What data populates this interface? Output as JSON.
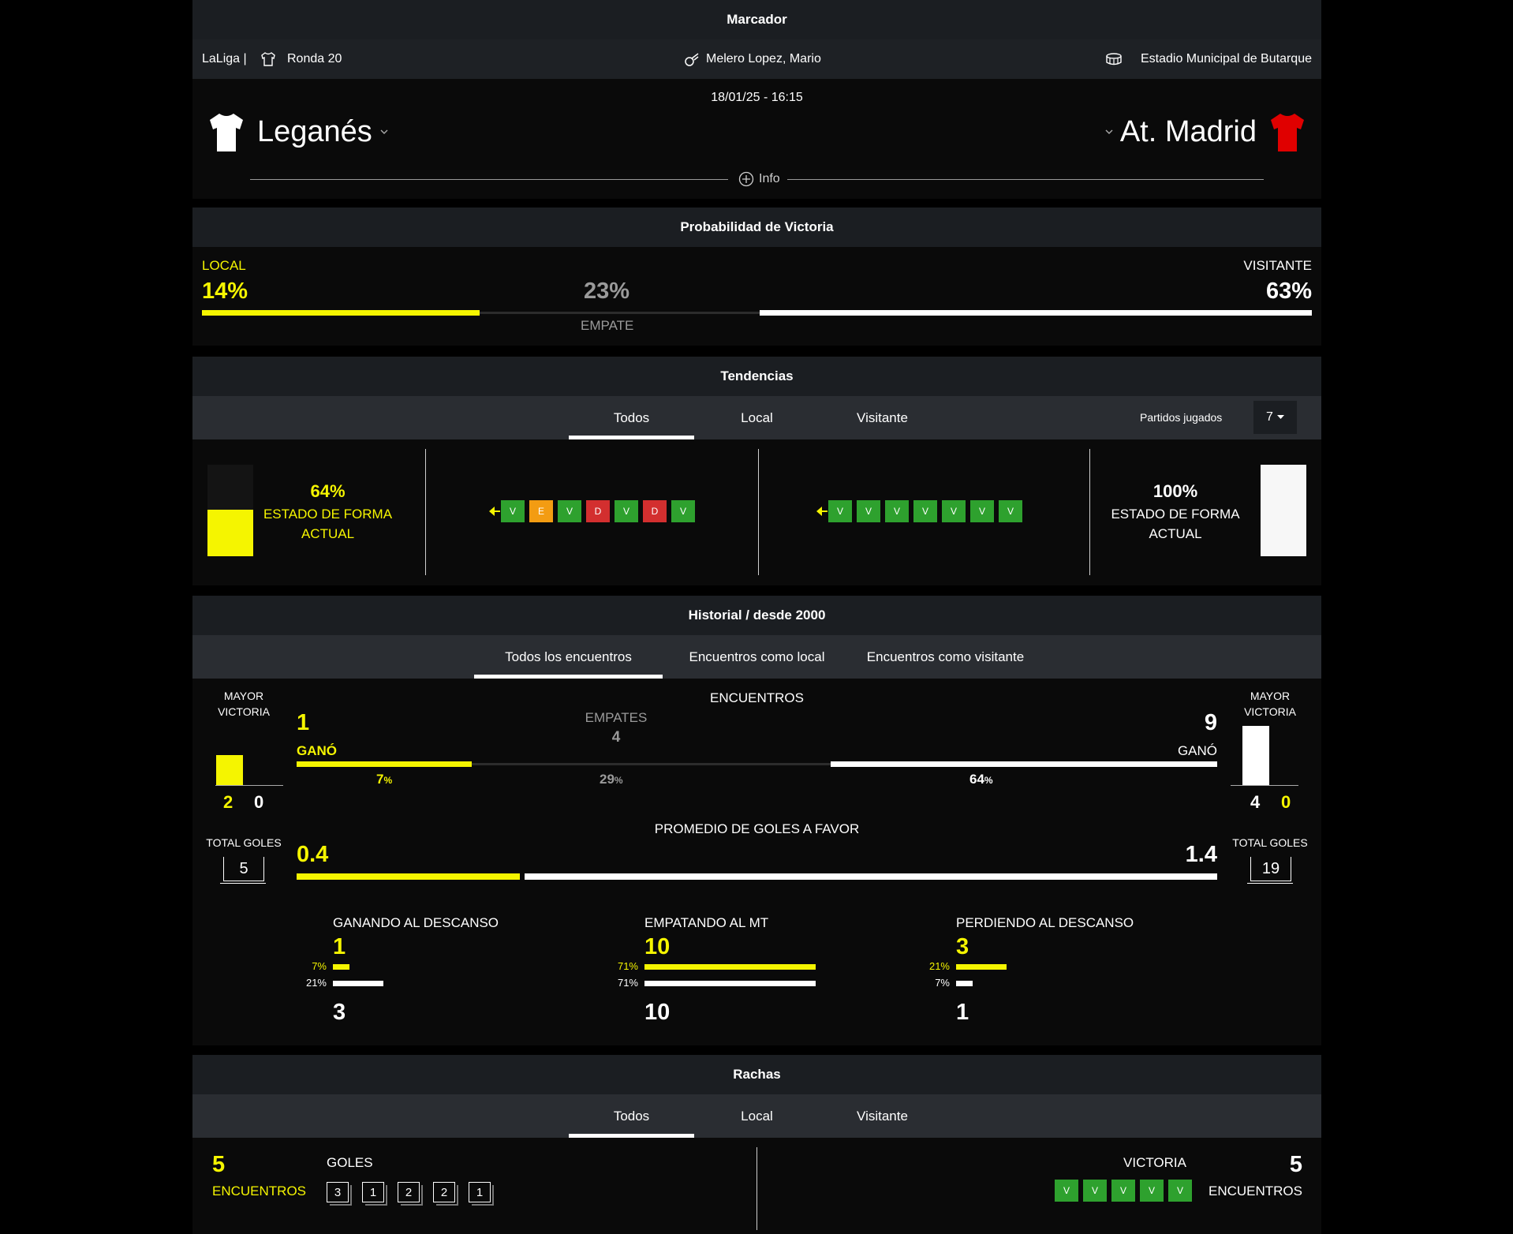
{
  "marcador": {
    "title": "Marcador",
    "league": "LaLiga |",
    "round": "Ronda 20",
    "referee": "Melero Lopez, Mario",
    "stadium": "Estadio Municipal de Butarque",
    "datetime": "18/01/25 - 16:15",
    "home_team": "Leganés",
    "away_team": "At. Madrid",
    "home_kit_color": "#ffffff",
    "away_kit_color": "#e00000",
    "info_label": "Info",
    "icons": {
      "round": "jersey-icon",
      "referee": "whistle-icon",
      "stadium": "stadium-icon",
      "info": "plus-circle-icon"
    }
  },
  "probabilidad": {
    "title": "Probabilidad de Victoria",
    "local_label": "LOCAL",
    "local_value": "14%",
    "draw_value": "23%",
    "draw_label": "EMPATE",
    "away_label": "VISITANTE",
    "away_value": "63%",
    "shares": {
      "local": 14,
      "draw": 23,
      "away": 63
    }
  },
  "tendencias": {
    "title": "Tendencias",
    "tabs": [
      "Todos",
      "Local",
      "Visitante"
    ],
    "active_tab": 0,
    "played_label": "Partidos jugados",
    "played_value": "7",
    "home_form_value": "64%",
    "home_form_label_1": "ESTADO DE FORMA",
    "home_form_label_2": "ACTUAL",
    "home_form_level": 64,
    "away_form_value": "100%",
    "away_form_label_1": "ESTADO DE FORMA",
    "away_form_label_2": "ACTUAL",
    "away_form_level": 100,
    "home_results": [
      "V",
      "E",
      "V",
      "D",
      "V",
      "D",
      "V"
    ],
    "away_results": [
      "V",
      "V",
      "V",
      "V",
      "V",
      "V",
      "V"
    ],
    "colors": {
      "V": "#2ea12e",
      "E": "#f39c12",
      "D": "#d32f2f",
      "home": "#f5f500",
      "away": "#ffffff"
    }
  },
  "historial": {
    "title": "Historial / desde 2000",
    "tabs": [
      "Todos los encuentros",
      "Encuentros como local",
      "Encuentros como visitante"
    ],
    "active_tab": 0,
    "mayor_victoria_1": "MAYOR",
    "mayor_victoria_2": "VICTORIA",
    "home_big_win": {
      "home": "2",
      "away": "0"
    },
    "away_big_win": {
      "home": "4",
      "away": "0"
    },
    "encuentros_label": "ENCUENTROS",
    "home_wins": "1",
    "home_won_label": "GANÓ",
    "draws_label": "EMPATES",
    "draws": "4",
    "away_wins": "9",
    "away_won_label": "GANÓ",
    "pct_home": "7",
    "pct_draw": "29",
    "pct_away": "64",
    "pct_sign": "%",
    "promedio_label": "PROMEDIO DE GOLES A FAVOR",
    "home_avg": "0.4",
    "away_avg": "1.4",
    "total_goles_label": "TOTAL GOLES",
    "home_total": "5",
    "away_total": "19",
    "halftime": [
      {
        "label": "GANANDO AL DESCANSO",
        "home": "1",
        "away": "3",
        "home_pct": "7%",
        "away_pct": "21%",
        "home_level": 7,
        "away_level": 21
      },
      {
        "label": "EMPATANDO AL MT",
        "home": "10",
        "away": "10",
        "home_pct": "71%",
        "away_pct": "71%",
        "home_level": 71,
        "away_level": 71
      },
      {
        "label": "PERDIENDO AL DESCANSO",
        "home": "3",
        "away": "1",
        "home_pct": "21%",
        "away_pct": "7%",
        "home_level": 21,
        "away_level": 7
      }
    ]
  },
  "rachas": {
    "title": "Rachas",
    "tabs": [
      "Todos",
      "Local",
      "Visitante"
    ],
    "active_tab": 0,
    "home_count": "5",
    "home_count_label": "ENCUENTROS",
    "home_streak_label": "GOLES",
    "home_goals": [
      "3",
      "1",
      "2",
      "2",
      "1"
    ],
    "away_count": "5",
    "away_count_label": "ENCUENTROS",
    "away_streak_label": "VICTORIA",
    "away_results": [
      "V",
      "V",
      "V",
      "V",
      "V"
    ]
  }
}
